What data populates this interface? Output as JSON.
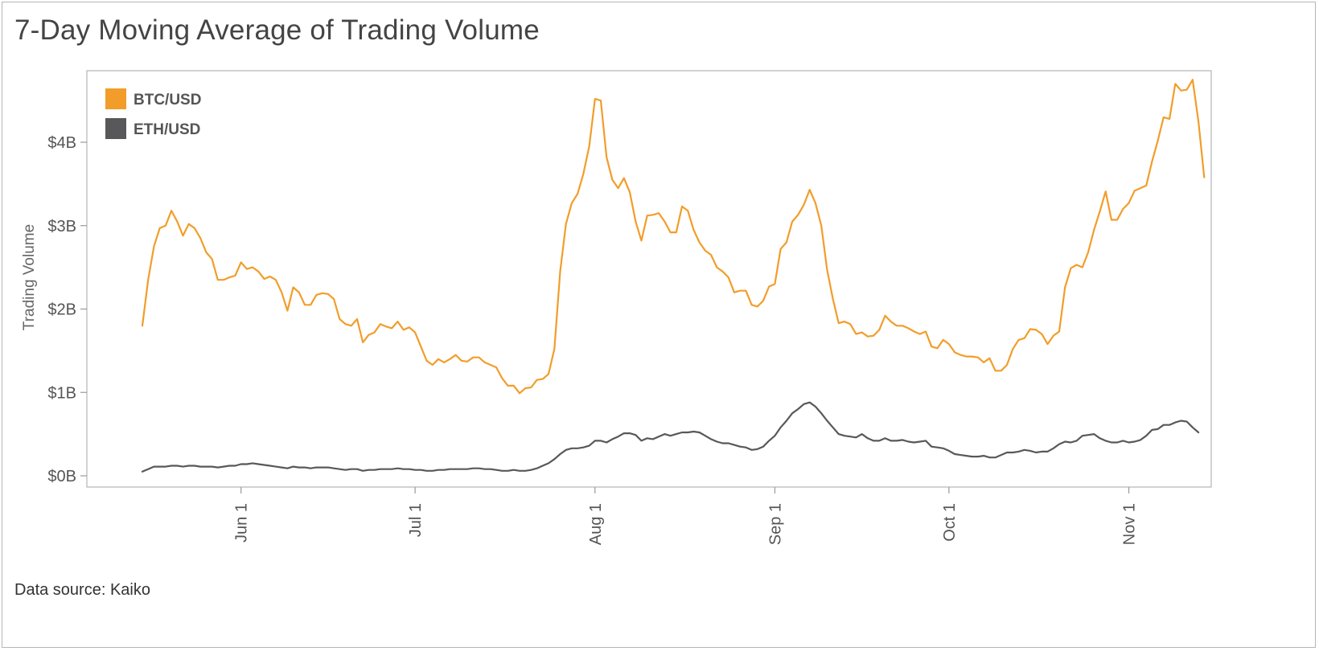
{
  "chart_data": {
    "type": "line",
    "title": "7-Day Moving Average of Trading Volume",
    "xlabel": "",
    "ylabel": "Trading Volume",
    "ylim": [
      0,
      5.0
    ],
    "x_range": [
      "May 15",
      "Nov 20"
    ],
    "yticks": [
      {
        "value": 0,
        "label": "$0B"
      },
      {
        "value": 1,
        "label": "$1B"
      },
      {
        "value": 2,
        "label": "$2B"
      },
      {
        "value": 3,
        "label": "$3B"
      },
      {
        "value": 4,
        "label": "$4B"
      }
    ],
    "xticks": [
      {
        "day": 17,
        "label": "Jun 1"
      },
      {
        "day": 47,
        "label": "Jul 1"
      },
      {
        "day": 78,
        "label": "Aug 1"
      },
      {
        "day": 109,
        "label": "Sep 1"
      },
      {
        "day": 139,
        "label": "Oct 1"
      },
      {
        "day": 170,
        "label": "Nov 1"
      }
    ],
    "legend_position": "top-left",
    "grid": false,
    "series": [
      {
        "name": "BTC/USD",
        "color": "#f29d2a",
        "x_start_day": 0,
        "values": [
          1.8,
          2.35,
          2.75,
          2.97,
          3.0,
          3.18,
          3.05,
          2.88,
          3.02,
          2.97,
          2.85,
          2.68,
          2.6,
          2.35,
          2.35,
          2.38,
          2.4,
          2.56,
          2.48,
          2.5,
          2.45,
          2.36,
          2.39,
          2.35,
          2.2,
          1.98,
          2.26,
          2.2,
          2.05,
          2.05,
          2.17,
          2.19,
          2.18,
          2.12,
          1.88,
          1.82,
          1.8,
          1.88,
          1.6,
          1.69,
          1.72,
          1.82,
          1.79,
          1.77,
          1.85,
          1.75,
          1.78,
          1.72,
          1.55,
          1.38,
          1.33,
          1.4,
          1.36,
          1.4,
          1.45,
          1.38,
          1.37,
          1.42,
          1.42,
          1.36,
          1.33,
          1.3,
          1.17,
          1.08,
          1.08,
          0.99,
          1.05,
          1.06,
          1.15,
          1.16,
          1.22,
          1.52,
          2.45,
          3.02,
          3.27,
          3.38,
          3.62,
          3.95,
          4.52,
          4.5,
          3.82,
          3.55,
          3.45,
          3.57,
          3.4,
          3.05,
          2.82,
          3.12,
          3.13,
          3.15,
          3.05,
          2.92,
          2.92,
          3.23,
          3.18,
          2.95,
          2.8,
          2.7,
          2.65,
          2.5,
          2.45,
          2.38,
          2.2,
          2.22,
          2.22,
          2.05,
          2.03,
          2.1,
          2.27,
          2.3,
          2.72,
          2.8,
          3.05,
          3.13,
          3.25,
          3.43,
          3.27,
          3.0,
          2.47,
          2.12,
          1.83,
          1.85,
          1.82,
          1.7,
          1.72,
          1.67,
          1.68,
          1.75,
          1.92,
          1.85,
          1.8,
          1.8,
          1.77,
          1.73,
          1.7,
          1.73,
          1.55,
          1.53,
          1.63,
          1.58,
          1.48,
          1.45,
          1.43,
          1.43,
          1.42,
          1.36,
          1.41,
          1.26,
          1.26,
          1.33,
          1.52,
          1.63,
          1.65,
          1.76,
          1.75,
          1.7,
          1.58,
          1.68,
          1.73,
          2.26,
          2.49,
          2.53,
          2.5,
          2.68,
          2.95,
          3.17,
          3.41,
          3.07,
          3.07,
          3.2,
          3.27,
          3.42,
          3.45,
          3.48,
          3.77,
          4.02,
          4.3,
          4.28,
          4.7,
          4.62,
          4.63,
          4.75,
          4.25,
          3.58
        ]
      },
      {
        "name": "ETH/USD",
        "color": "#58585a",
        "x_start_day": 0,
        "values": [
          0.05,
          0.08,
          0.11,
          0.11,
          0.11,
          0.12,
          0.12,
          0.11,
          0.12,
          0.12,
          0.11,
          0.11,
          0.11,
          0.1,
          0.11,
          0.12,
          0.12,
          0.14,
          0.14,
          0.15,
          0.14,
          0.13,
          0.12,
          0.11,
          0.1,
          0.09,
          0.11,
          0.1,
          0.1,
          0.09,
          0.1,
          0.1,
          0.1,
          0.09,
          0.08,
          0.07,
          0.08,
          0.08,
          0.06,
          0.07,
          0.07,
          0.08,
          0.08,
          0.08,
          0.09,
          0.08,
          0.08,
          0.07,
          0.07,
          0.06,
          0.06,
          0.07,
          0.07,
          0.08,
          0.08,
          0.08,
          0.08,
          0.09,
          0.09,
          0.08,
          0.08,
          0.07,
          0.06,
          0.06,
          0.07,
          0.06,
          0.06,
          0.07,
          0.09,
          0.12,
          0.15,
          0.2,
          0.26,
          0.31,
          0.33,
          0.33,
          0.34,
          0.36,
          0.42,
          0.42,
          0.4,
          0.44,
          0.47,
          0.51,
          0.51,
          0.49,
          0.42,
          0.45,
          0.44,
          0.47,
          0.5,
          0.48,
          0.5,
          0.52,
          0.52,
          0.53,
          0.52,
          0.48,
          0.44,
          0.41,
          0.39,
          0.39,
          0.37,
          0.35,
          0.34,
          0.31,
          0.32,
          0.35,
          0.42,
          0.48,
          0.58,
          0.66,
          0.75,
          0.8,
          0.86,
          0.88,
          0.83,
          0.75,
          0.66,
          0.58,
          0.5,
          0.48,
          0.47,
          0.46,
          0.5,
          0.45,
          0.42,
          0.42,
          0.45,
          0.42,
          0.42,
          0.43,
          0.41,
          0.4,
          0.41,
          0.42,
          0.35,
          0.34,
          0.33,
          0.3,
          0.26,
          0.25,
          0.24,
          0.23,
          0.23,
          0.24,
          0.22,
          0.22,
          0.25,
          0.28,
          0.28,
          0.29,
          0.31,
          0.3,
          0.28,
          0.29,
          0.29,
          0.33,
          0.38,
          0.41,
          0.4,
          0.42,
          0.48,
          0.49,
          0.5,
          0.45,
          0.42,
          0.4,
          0.4,
          0.42,
          0.4,
          0.41,
          0.43,
          0.48,
          0.55,
          0.56,
          0.61,
          0.61,
          0.64,
          0.66,
          0.65,
          0.58,
          0.52
        ]
      }
    ]
  }
}
